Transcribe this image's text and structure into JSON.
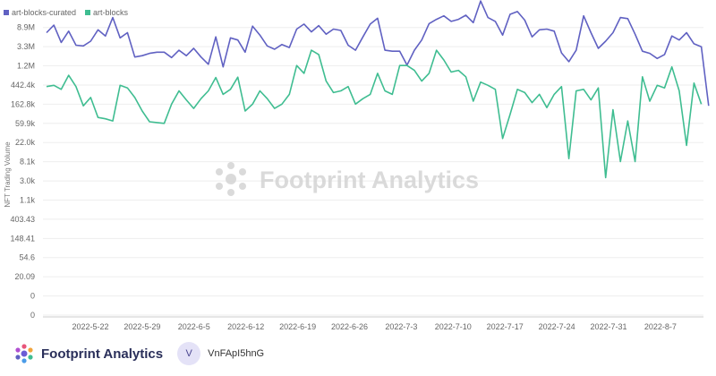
{
  "chart_data": {
    "type": "line",
    "title": "",
    "xlabel": "",
    "ylabel": "NFT Trading Volume",
    "y_ticks": [
      "0",
      "0",
      "20.09",
      "54.6",
      "148.41",
      "403.43",
      "1.1k",
      "3.0k",
      "8.1k",
      "22.0k",
      "59.9k",
      "162.8k",
      "442.4k",
      "1.2M",
      "3.3M",
      "8.9M"
    ],
    "x_ticks": [
      "2022-5-22",
      "2022-5-29",
      "2022-6-5",
      "2022-6-12",
      "2022-6-19",
      "2022-6-26",
      "2022-7-3",
      "2022-7-10",
      "2022-7-17",
      "2022-7-24",
      "2022-7-31",
      "2022-8-7"
    ],
    "legend_position": "top-left",
    "grid": true,
    "series": [
      {
        "name": "art-blocks-curated",
        "color": "#6061c2",
        "values": [
          2500000,
          3700000,
          1500000,
          2700000,
          1300000,
          1250000,
          1600000,
          2900000,
          2100000,
          5500000,
          1900000,
          2500000,
          700000,
          750000,
          850000,
          900000,
          900000,
          680000,
          1000000,
          750000,
          1100000,
          700000,
          480000,
          2000000,
          420000,
          1900000,
          1700000,
          900000,
          3500000,
          2200000,
          1250000,
          1050000,
          1350000,
          1150000,
          3000000,
          3900000,
          2600000,
          3600000,
          2300000,
          3000000,
          2800000,
          1300000,
          1000000,
          2000000,
          3900000,
          5300000,
          1000000,
          950000,
          950000,
          460000,
          1000000,
          1700000,
          4000000,
          5000000,
          6000000,
          4500000,
          5000000,
          6200000,
          4200000,
          13000000,
          5500000,
          4500000,
          2200000,
          6500000,
          7500000,
          4800000,
          2000000,
          2900000,
          3000000,
          2700000,
          870000,
          550000,
          1000000,
          6000000,
          2500000,
          1100000,
          1600000,
          2500000,
          5500000,
          5200000,
          2300000,
          950000,
          850000,
          650000,
          800000,
          2100000,
          1700000,
          2500000,
          1400000,
          1200000,
          55000
        ]
      },
      {
        "name": "art-blocks",
        "color": "#3fbd91",
        "values": [
          150000,
          160000,
          130000,
          270000,
          150000,
          55000,
          85000,
          30000,
          28000,
          25000,
          160000,
          140000,
          85000,
          42000,
          24000,
          23000,
          22000,
          60000,
          120000,
          75000,
          48000,
          80000,
          120000,
          240000,
          100000,
          130000,
          245000,
          42000,
          60000,
          120000,
          80000,
          48000,
          60000,
          100000,
          450000,
          300000,
          1000000,
          800000,
          200000,
          110000,
          120000,
          150000,
          60000,
          80000,
          100000,
          300000,
          120000,
          100000,
          450000,
          450000,
          350000,
          200000,
          300000,
          1000000,
          600000,
          320000,
          350000,
          250000,
          70000,
          190000,
          160000,
          130000,
          10000,
          35000,
          130000,
          110000,
          65000,
          100000,
          50000,
          100000,
          150000,
          3500,
          120000,
          130000,
          75000,
          140000,
          1300,
          45000,
          3000,
          25000,
          3000,
          250000,
          70000,
          160000,
          140000,
          420000,
          120000,
          7000,
          180000,
          60000
        ]
      }
    ]
  },
  "watermark": "Footprint Analytics",
  "footer": {
    "brand": "Footprint Analytics",
    "avatar_initial": "V",
    "username": "VnFApI5hnG"
  }
}
